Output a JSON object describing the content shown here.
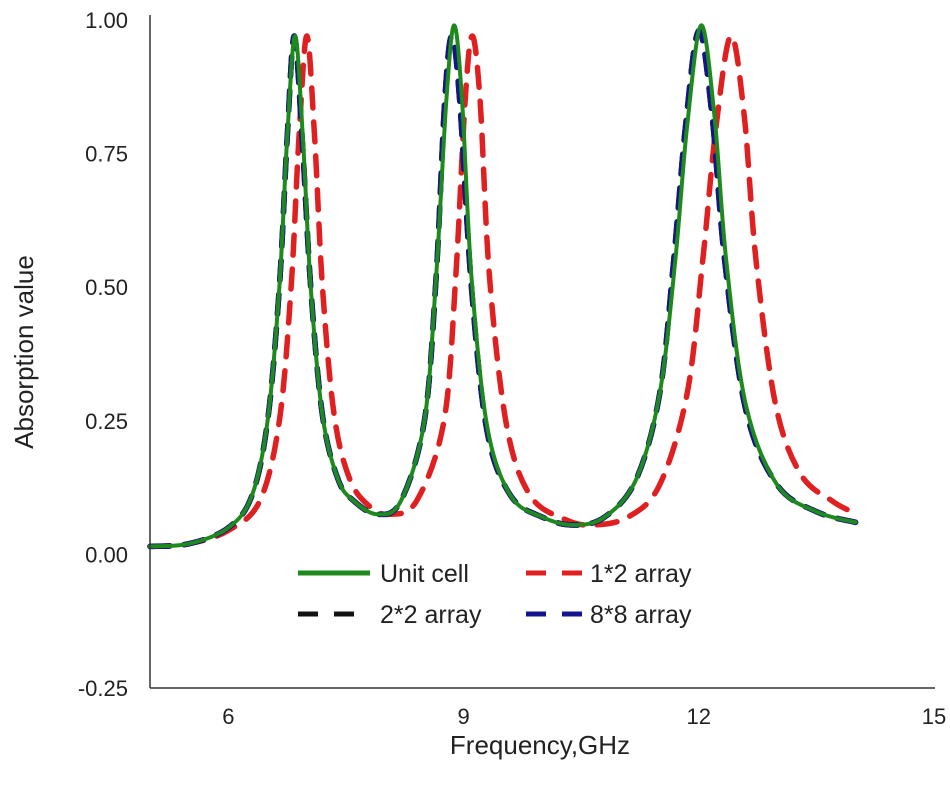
{
  "chart_data": {
    "type": "line",
    "title": "",
    "xlabel": "Frequency,GHz",
    "ylabel": "Absorption value",
    "xlim": [
      5,
      15
    ],
    "ylim": [
      -0.25,
      1.0
    ],
    "xticks": [
      6,
      9,
      12,
      15
    ],
    "xtick_labels": [
      "6",
      "9",
      "12",
      "15"
    ],
    "yticks": [
      -0.25,
      0,
      0.25,
      0.5,
      0.75,
      1.0
    ],
    "ytick_labels": [
      "-0.25",
      "0.00",
      "0.25",
      "0.50",
      "0.75",
      "1.00"
    ],
    "grid": false,
    "legend_position": "bottom-center-inside",
    "series": [
      {
        "name": "Unit cell",
        "color": "#1e8a1e",
        "style": "solid",
        "x": [
          5,
          5.5,
          6,
          6.3,
          6.5,
          6.65,
          6.75,
          6.85,
          6.95,
          7.05,
          7.2,
          7.4,
          7.6,
          7.9,
          8.2,
          8.5,
          8.65,
          8.78,
          8.88,
          8.98,
          9.1,
          9.3,
          9.6,
          10,
          10.4,
          10.8,
          11.2,
          11.5,
          11.7,
          11.85,
          12.03,
          12.2,
          12.35,
          12.6,
          13,
          13.5,
          14
        ],
        "y": [
          0.015,
          0.02,
          0.05,
          0.11,
          0.25,
          0.5,
          0.78,
          0.97,
          0.78,
          0.5,
          0.26,
          0.14,
          0.1,
          0.075,
          0.1,
          0.25,
          0.52,
          0.85,
          0.99,
          0.85,
          0.52,
          0.24,
          0.11,
          0.07,
          0.055,
          0.07,
          0.14,
          0.3,
          0.55,
          0.8,
          0.99,
          0.82,
          0.55,
          0.28,
          0.13,
          0.08,
          0.06
        ]
      },
      {
        "name": "1*2 array",
        "color": "#e02020",
        "style": "dashed",
        "x": [
          5,
          5.5,
          6,
          6.4,
          6.65,
          6.8,
          6.9,
          7.0,
          7.1,
          7.2,
          7.35,
          7.55,
          7.8,
          8.05,
          8.4,
          8.75,
          8.9,
          9.02,
          9.11,
          9.21,
          9.33,
          9.55,
          9.85,
          10.3,
          10.65,
          11.1,
          11.5,
          11.85,
          12.05,
          12.22,
          12.41,
          12.58,
          12.73,
          12.98,
          13.3,
          13.7,
          13.95
        ],
        "y": [
          0.015,
          0.02,
          0.045,
          0.1,
          0.25,
          0.5,
          0.78,
          0.97,
          0.78,
          0.5,
          0.26,
          0.14,
          0.09,
          0.075,
          0.1,
          0.25,
          0.52,
          0.85,
          0.97,
          0.85,
          0.52,
          0.24,
          0.11,
          0.065,
          0.055,
          0.07,
          0.13,
          0.3,
          0.55,
          0.8,
          0.97,
          0.82,
          0.55,
          0.28,
          0.15,
          0.1,
          0.08
        ]
      },
      {
        "name": "2*2 array",
        "color": "#111111",
        "style": "dashed",
        "x": [
          5,
          5.5,
          6,
          6.3,
          6.5,
          6.65,
          6.75,
          6.84,
          6.94,
          7.05,
          7.2,
          7.4,
          7.6,
          7.9,
          8.2,
          8.5,
          8.65,
          8.76,
          8.85,
          8.95,
          9.1,
          9.3,
          9.6,
          10,
          10.4,
          10.8,
          11.2,
          11.5,
          11.68,
          11.83,
          12.0,
          12.17,
          12.33,
          12.6,
          13,
          13.5,
          14
        ],
        "y": [
          0.015,
          0.02,
          0.05,
          0.11,
          0.25,
          0.5,
          0.78,
          0.97,
          0.78,
          0.5,
          0.26,
          0.14,
          0.1,
          0.075,
          0.1,
          0.25,
          0.52,
          0.85,
          0.97,
          0.85,
          0.5,
          0.23,
          0.11,
          0.07,
          0.055,
          0.07,
          0.14,
          0.3,
          0.55,
          0.8,
          0.98,
          0.82,
          0.55,
          0.27,
          0.13,
          0.08,
          0.06
        ]
      },
      {
        "name": "8*8 array",
        "color": "#14148c",
        "style": "dashed",
        "x": [
          5,
          5.5,
          6,
          6.3,
          6.5,
          6.65,
          6.75,
          6.84,
          6.94,
          7.05,
          7.2,
          7.4,
          7.6,
          7.9,
          8.2,
          8.5,
          8.65,
          8.76,
          8.85,
          8.95,
          9.1,
          9.3,
          9.6,
          10,
          10.4,
          10.8,
          11.2,
          11.5,
          11.68,
          11.83,
          12.0,
          12.17,
          12.33,
          12.6,
          13,
          13.5,
          14
        ],
        "y": [
          0.015,
          0.02,
          0.05,
          0.11,
          0.25,
          0.5,
          0.78,
          0.97,
          0.78,
          0.5,
          0.26,
          0.14,
          0.1,
          0.075,
          0.1,
          0.25,
          0.52,
          0.85,
          0.97,
          0.85,
          0.5,
          0.23,
          0.11,
          0.07,
          0.055,
          0.07,
          0.14,
          0.3,
          0.55,
          0.8,
          0.98,
          0.82,
          0.55,
          0.27,
          0.13,
          0.08,
          0.06
        ]
      }
    ]
  }
}
